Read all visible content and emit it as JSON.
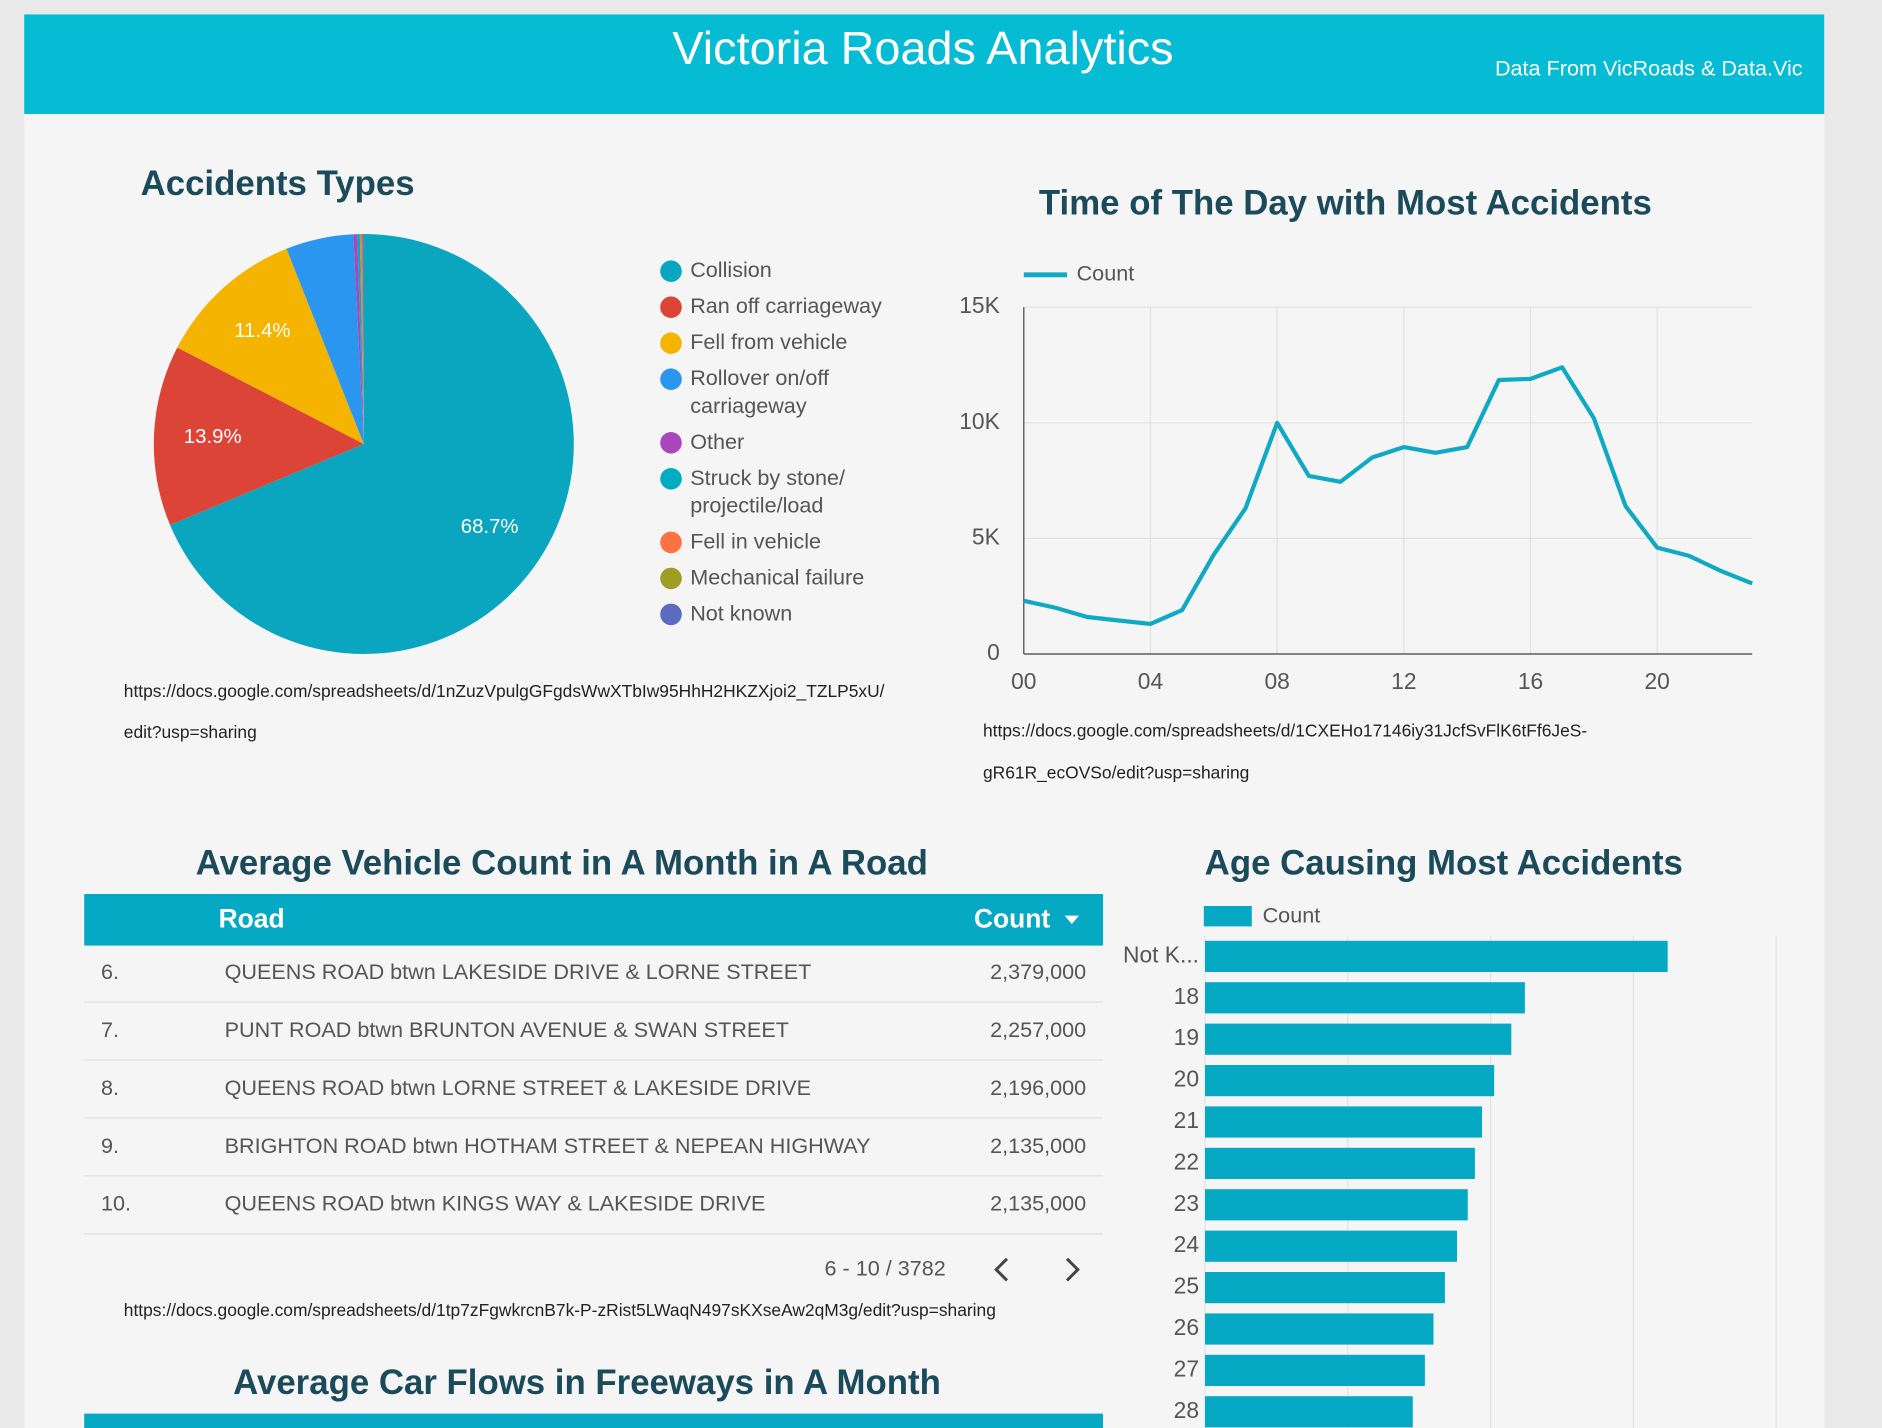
{
  "header": {
    "title": "Victoria Roads Analytics",
    "subtitle": "Data From VicRoads & Data.Vic"
  },
  "chart_data": [
    {
      "type": "pie",
      "title": "Accidents Types",
      "categories": [
        "Collision",
        "Ran off carriageway",
        "Fell from vehicle",
        "Rollover on/off carriageway",
        "Other",
        "Struck by stone/projectile/load",
        "Fell in vehicle",
        "Mechanical failure",
        "Not known"
      ],
      "values": [
        68.7,
        13.9,
        11.4,
        5.2,
        0.3,
        0.2,
        0.1,
        0.1,
        0.1
      ],
      "value_labels": [
        "68.7%",
        "13.9%",
        "11.4%",
        null,
        null,
        null,
        null,
        null,
        null
      ],
      "colors": [
        "#0aa5bf",
        "#dc4437",
        "#f4b400",
        "#2b96f0",
        "#ab47bc",
        "#00acc1",
        "#ff7043",
        "#9e9d24",
        "#5c6bc0"
      ],
      "source": [
        "https://docs.google.com/spreadsheets/d/1nZuzVpulgGFgdsWwXTbIw95HhH2HKZXjoi2_TZLP5xU/",
        "edit?usp=sharing"
      ]
    },
    {
      "type": "line",
      "title": "Time of The Day with Most Accidents",
      "x": [
        0,
        1,
        2,
        3,
        4,
        5,
        6,
        7,
        8,
        9,
        10,
        11,
        12,
        13,
        14,
        15,
        16,
        17,
        18,
        19,
        20,
        21,
        22,
        23
      ],
      "series": [
        {
          "name": "Count",
          "color": "#10a9c3",
          "values": [
            2300,
            2000,
            1600,
            1450,
            1300,
            1900,
            4300,
            6300,
            10000,
            7700,
            7450,
            8500,
            8950,
            8700,
            8950,
            11850,
            11900,
            12400,
            10200,
            6400,
            4600,
            4250,
            3600,
            3050
          ]
        }
      ],
      "xlim": [
        0,
        23
      ],
      "xticks": [
        {
          "value": 0,
          "label": "00"
        },
        {
          "value": 4,
          "label": "04"
        },
        {
          "value": 8,
          "label": "08"
        },
        12,
        16,
        20
      ],
      "ylim": [
        0,
        15000
      ],
      "yticks": [
        0,
        {
          "value": 5000,
          "label": "5K"
        },
        {
          "value": 10000,
          "label": "10K"
        },
        {
          "value": 15000,
          "label": "15K"
        }
      ],
      "grid": true,
      "source": [
        "https://docs.google.com/spreadsheets/d/1CXEHo17146iy31JcfSvFlK6tFf6JeS-",
        "gR61R_ecOVSo/edit?usp=sharing"
      ]
    },
    {
      "type": "bar",
      "orientation": "horizontal",
      "title": "Age Causing Most Accidents",
      "categories": [
        "Not K...",
        "18",
        "19",
        "20",
        "21",
        "22",
        "23",
        "24",
        "25",
        "26",
        "27",
        "28"
      ],
      "series": [
        {
          "name": "Count",
          "color": "#06a9c4",
          "values": [
            3240,
            2240,
            2145,
            2025,
            1940,
            1890,
            1840,
            1765,
            1680,
            1600,
            1540,
            1455
          ]
        }
      ],
      "xlim": [
        0,
        4000
      ],
      "xticks": [
        0,
        1000,
        2000,
        3000,
        4000
      ],
      "grid": true
    }
  ],
  "table": {
    "title": "Average Vehicle Count in A Month in A Road",
    "columns": [
      "Road",
      "Count"
    ],
    "rows": [
      [
        "6.",
        "QUEENS ROAD btwn LAKESIDE DRIVE & LORNE STREET",
        "2,379,000"
      ],
      [
        "7.",
        "PUNT ROAD btwn BRUNTON AVENUE & SWAN STREET",
        "2,257,000"
      ],
      [
        "8.",
        "QUEENS ROAD btwn LORNE STREET & LAKESIDE DRIVE",
        "2,196,000"
      ],
      [
        "9.",
        "BRIGHTON ROAD btwn HOTHAM STREET & NEPEAN HIGHWAY",
        "2,135,000"
      ],
      [
        "10.",
        "QUEENS ROAD btwn KINGS WAY & LAKESIDE DRIVE",
        "2,135,000"
      ]
    ],
    "pagination": "6 - 10 / 3782",
    "source": "https://docs.google.com/spreadsheets/d/1tp7zFgwkrcnB7k-P-zRist5LWaqN497sKXseAw2qM3g/edit?usp=sharing"
  },
  "table2": {
    "title": "Average Car Flows in Freeways in A Month"
  }
}
